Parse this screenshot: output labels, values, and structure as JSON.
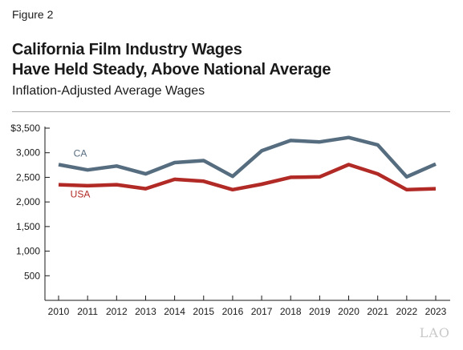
{
  "figure_label": "Figure 2",
  "title_line1": "California Film Industry Wages",
  "title_line2": "Have Held Steady, Above National Average",
  "subtitle": "Inflation-Adjusted Average Wages",
  "logo_text": "LAO",
  "chart_data": {
    "type": "line",
    "x": [
      2010,
      2011,
      2012,
      2013,
      2014,
      2015,
      2016,
      2017,
      2018,
      2019,
      2020,
      2021,
      2022,
      2023
    ],
    "series": [
      {
        "name": "CA",
        "color": "#566d80",
        "values": [
          2760,
          2650,
          2730,
          2570,
          2800,
          2840,
          2520,
          3040,
          3250,
          3220,
          3310,
          3160,
          2510,
          2770
        ]
      },
      {
        "name": "USA",
        "color": "#b12a26",
        "values": [
          2350,
          2330,
          2350,
          2270,
          2460,
          2420,
          2250,
          2360,
          2500,
          2510,
          2760,
          2570,
          2250,
          2270
        ]
      }
    ],
    "ylim": [
      0,
      3500
    ],
    "y_ticks": [
      500,
      1000,
      1500,
      2000,
      2500,
      3000,
      3500
    ],
    "y_tick_labels": [
      "500",
      "1,000",
      "1,500",
      "2,000",
      "2,500",
      "3,000",
      "$3,500"
    ],
    "grid": false,
    "legend": "inline labels"
  }
}
